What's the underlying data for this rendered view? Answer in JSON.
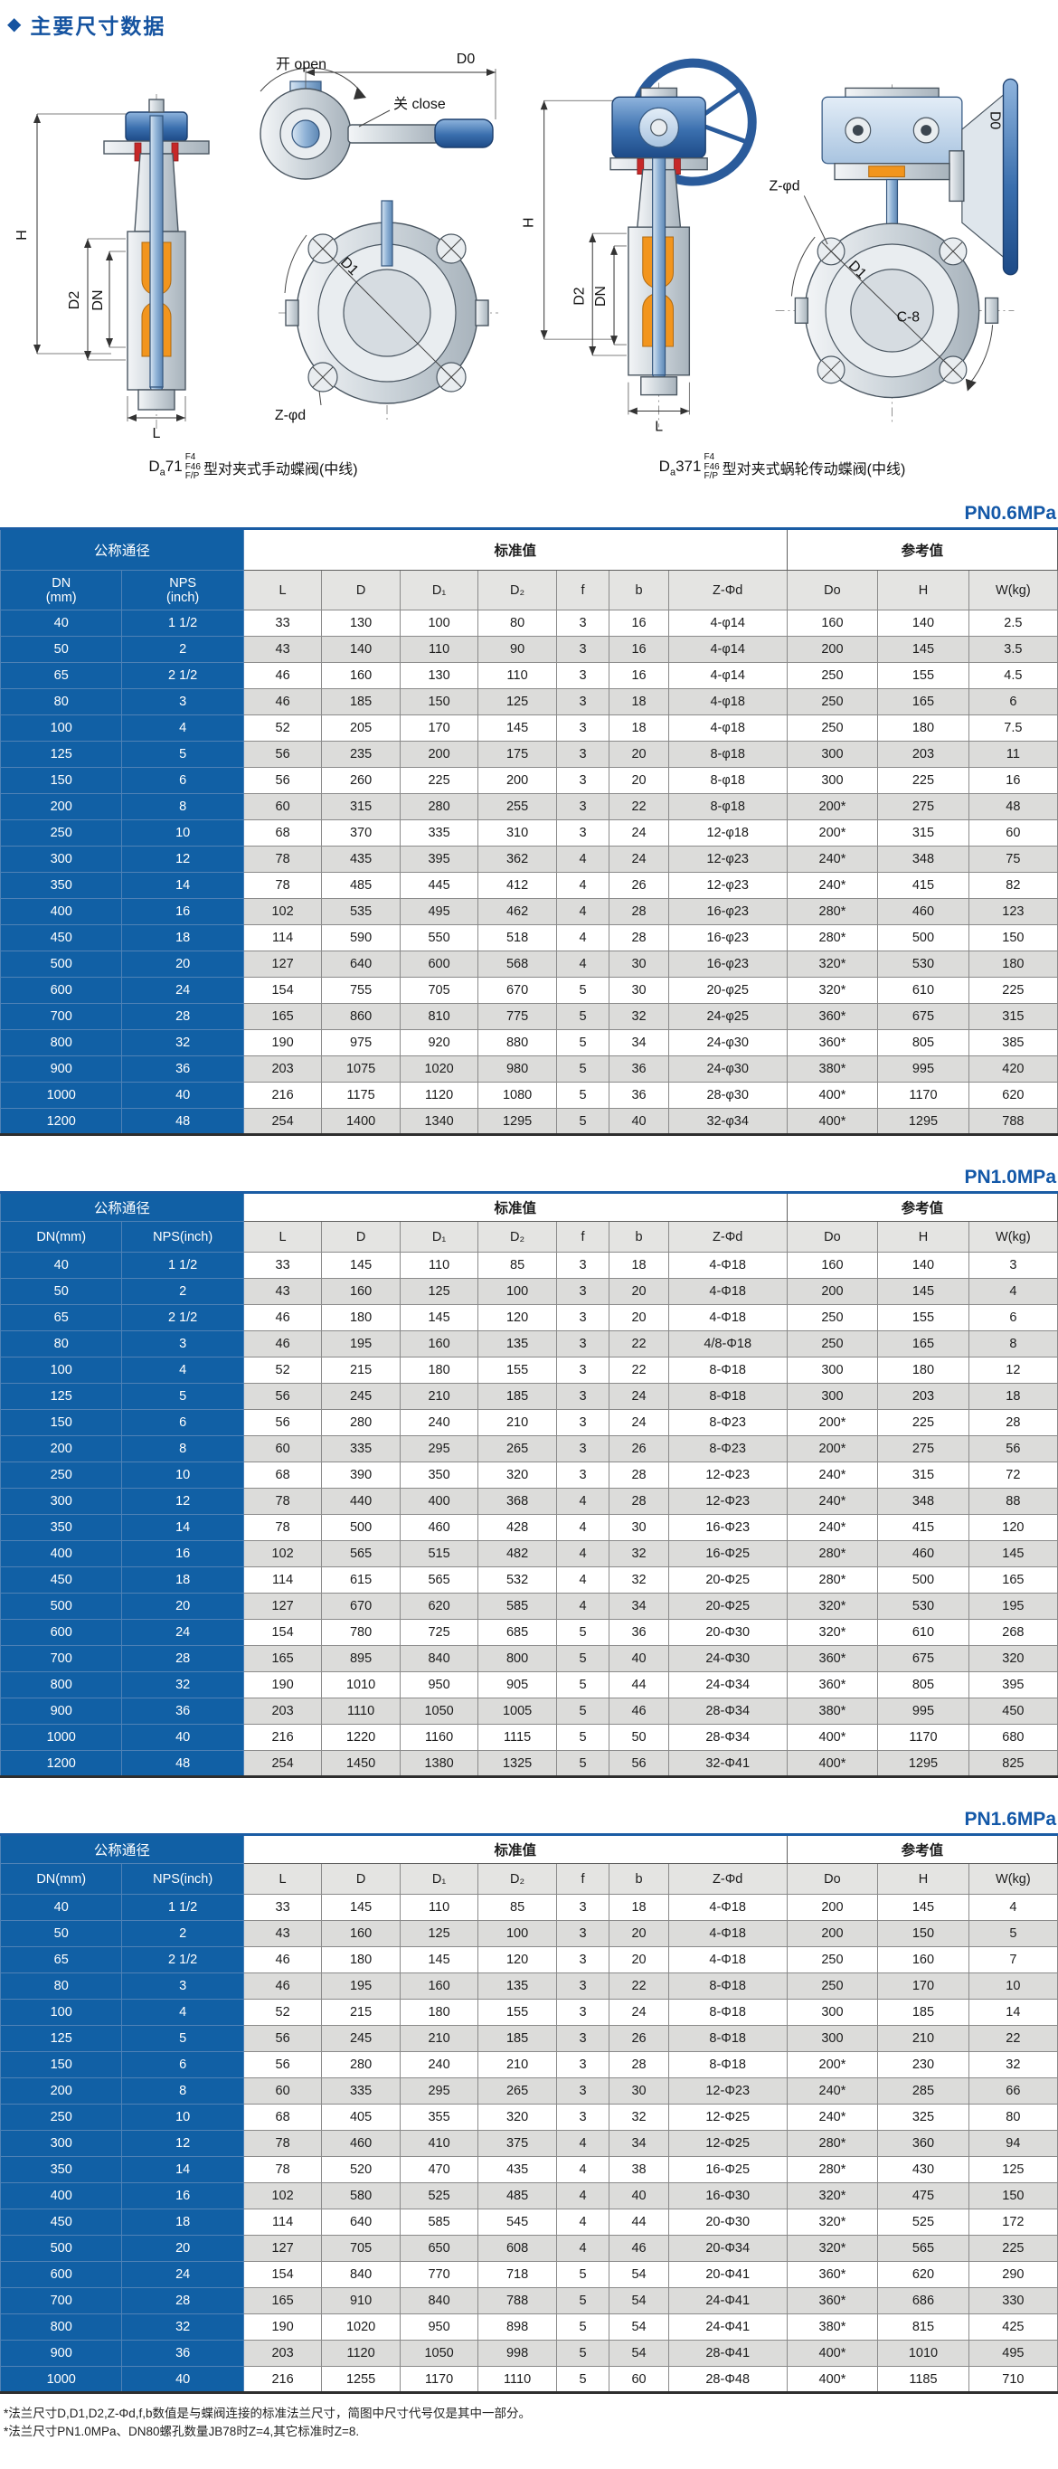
{
  "page": {
    "header": {
      "bullet": "◆",
      "title": "主要尺寸数据"
    },
    "footnotes": [
      "*法兰尺寸D,D1,D2,Z-Φd,f,b数值是与蝶阀连接的标准法兰尺寸，简图中尺寸代号仅是其中一部分。",
      "*法兰尺寸PN1.0MPa、DN80螺孔数量JB78时Z=4,其它标准时Z=8."
    ]
  },
  "drawings": {
    "left": {
      "labels": {
        "open": "开 open",
        "close": "关 close",
        "d0": "D0",
        "h": "H",
        "d2": "D2",
        "dn": "DN",
        "l": "L",
        "zpd": "Z-φd",
        "d1": "D1"
      },
      "caption": {
        "model_prefix": "D",
        "model_sub": "a",
        "model_rest": "71",
        "stack": [
          "F4",
          "F46",
          "F/P"
        ],
        "text": "型对夹式手动蝶阀(中线)"
      }
    },
    "right": {
      "labels": {
        "h": "H",
        "d2": "D2",
        "dn": "DN",
        "l": "L",
        "zpd": "Z-φd",
        "d1": "D1",
        "c8": "C-8",
        "d0": "D0"
      },
      "caption": {
        "model_prefix": "D",
        "model_sub": "a",
        "model_rest": "371",
        "stack": [
          "F4",
          "F46",
          "F/P"
        ],
        "text": "型对夹式蜗轮传动蝶阀(中线)"
      }
    }
  },
  "tables": [
    {
      "title": "PN0.6MPa",
      "groups": [
        {
          "label": "公称通径",
          "span": 2,
          "blue": true
        },
        {
          "label": "标准值",
          "span": 7,
          "blue": false
        },
        {
          "label": "参考值",
          "span": 3,
          "blue": false
        }
      ],
      "columns": [
        "DN\n(mm)",
        "NPS\n(inch)",
        "L",
        "D",
        "D₁",
        "D₂",
        "f",
        "b",
        "Z-Φd",
        "Do",
        "H",
        "W(kg)"
      ],
      "rows": [
        [
          "40",
          "1 1/2",
          "33",
          "130",
          "100",
          "80",
          "3",
          "16",
          "4-φ14",
          "160",
          "140",
          "2.5"
        ],
        [
          "50",
          "2",
          "43",
          "140",
          "110",
          "90",
          "3",
          "16",
          "4-φ14",
          "200",
          "145",
          "3.5"
        ],
        [
          "65",
          "2 1/2",
          "46",
          "160",
          "130",
          "110",
          "3",
          "16",
          "4-φ14",
          "250",
          "155",
          "4.5"
        ],
        [
          "80",
          "3",
          "46",
          "185",
          "150",
          "125",
          "3",
          "18",
          "4-φ18",
          "250",
          "165",
          "6"
        ],
        [
          "100",
          "4",
          "52",
          "205",
          "170",
          "145",
          "3",
          "18",
          "4-φ18",
          "250",
          "180",
          "7.5"
        ],
        [
          "125",
          "5",
          "56",
          "235",
          "200",
          "175",
          "3",
          "20",
          "8-φ18",
          "300",
          "203",
          "11"
        ],
        [
          "150",
          "6",
          "56",
          "260",
          "225",
          "200",
          "3",
          "20",
          "8-φ18",
          "300",
          "225",
          "16"
        ],
        [
          "200",
          "8",
          "60",
          "315",
          "280",
          "255",
          "3",
          "22",
          "8-φ18",
          "200*",
          "275",
          "48"
        ],
        [
          "250",
          "10",
          "68",
          "370",
          "335",
          "310",
          "3",
          "24",
          "12-φ18",
          "200*",
          "315",
          "60"
        ],
        [
          "300",
          "12",
          "78",
          "435",
          "395",
          "362",
          "4",
          "24",
          "12-φ23",
          "240*",
          "348",
          "75"
        ],
        [
          "350",
          "14",
          "78",
          "485",
          "445",
          "412",
          "4",
          "26",
          "12-φ23",
          "240*",
          "415",
          "82"
        ],
        [
          "400",
          "16",
          "102",
          "535",
          "495",
          "462",
          "4",
          "28",
          "16-φ23",
          "280*",
          "460",
          "123"
        ],
        [
          "450",
          "18",
          "114",
          "590",
          "550",
          "518",
          "4",
          "28",
          "16-φ23",
          "280*",
          "500",
          "150"
        ],
        [
          "500",
          "20",
          "127",
          "640",
          "600",
          "568",
          "4",
          "30",
          "16-φ23",
          "320*",
          "530",
          "180"
        ],
        [
          "600",
          "24",
          "154",
          "755",
          "705",
          "670",
          "5",
          "30",
          "20-φ25",
          "320*",
          "610",
          "225"
        ],
        [
          "700",
          "28",
          "165",
          "860",
          "810",
          "775",
          "5",
          "32",
          "24-φ25",
          "360*",
          "675",
          "315"
        ],
        [
          "800",
          "32",
          "190",
          "975",
          "920",
          "880",
          "5",
          "34",
          "24-φ30",
          "360*",
          "805",
          "385"
        ],
        [
          "900",
          "36",
          "203",
          "1075",
          "1020",
          "980",
          "5",
          "36",
          "24-φ30",
          "380*",
          "995",
          "420"
        ],
        [
          "1000",
          "40",
          "216",
          "1175",
          "1120",
          "1080",
          "5",
          "36",
          "28-φ30",
          "400*",
          "1170",
          "620"
        ],
        [
          "1200",
          "48",
          "254",
          "1400",
          "1340",
          "1295",
          "5",
          "40",
          "32-φ34",
          "400*",
          "1295",
          "788"
        ]
      ]
    },
    {
      "title": "PN1.0MPa",
      "groups": [
        {
          "label": "公称通径",
          "span": 2,
          "blue": true
        },
        {
          "label": "标准值",
          "span": 7,
          "blue": false
        },
        {
          "label": "参考值",
          "span": 3,
          "blue": false
        }
      ],
      "columns": [
        "DN(mm)",
        "NPS(inch)",
        "L",
        "D",
        "D₁",
        "D₂",
        "f",
        "b",
        "Z-Φd",
        "Do",
        "H",
        "W(kg)"
      ],
      "rows": [
        [
          "40",
          "1 1/2",
          "33",
          "145",
          "110",
          "85",
          "3",
          "18",
          "4-Φ18",
          "160",
          "140",
          "3"
        ],
        [
          "50",
          "2",
          "43",
          "160",
          "125",
          "100",
          "3",
          "20",
          "4-Φ18",
          "200",
          "145",
          "4"
        ],
        [
          "65",
          "2 1/2",
          "46",
          "180",
          "145",
          "120",
          "3",
          "20",
          "4-Φ18",
          "250",
          "155",
          "6"
        ],
        [
          "80",
          "3",
          "46",
          "195",
          "160",
          "135",
          "3",
          "22",
          "4/8-Φ18",
          "250",
          "165",
          "8"
        ],
        [
          "100",
          "4",
          "52",
          "215",
          "180",
          "155",
          "3",
          "22",
          "8-Φ18",
          "300",
          "180",
          "12"
        ],
        [
          "125",
          "5",
          "56",
          "245",
          "210",
          "185",
          "3",
          "24",
          "8-Φ18",
          "300",
          "203",
          "18"
        ],
        [
          "150",
          "6",
          "56",
          "280",
          "240",
          "210",
          "3",
          "24",
          "8-Φ23",
          "200*",
          "225",
          "28"
        ],
        [
          "200",
          "8",
          "60",
          "335",
          "295",
          "265",
          "3",
          "26",
          "8-Φ23",
          "200*",
          "275",
          "56"
        ],
        [
          "250",
          "10",
          "68",
          "390",
          "350",
          "320",
          "3",
          "28",
          "12-Φ23",
          "240*",
          "315",
          "72"
        ],
        [
          "300",
          "12",
          "78",
          "440",
          "400",
          "368",
          "4",
          "28",
          "12-Φ23",
          "240*",
          "348",
          "88"
        ],
        [
          "350",
          "14",
          "78",
          "500",
          "460",
          "428",
          "4",
          "30",
          "16-Φ23",
          "240*",
          "415",
          "120"
        ],
        [
          "400",
          "16",
          "102",
          "565",
          "515",
          "482",
          "4",
          "32",
          "16-Φ25",
          "280*",
          "460",
          "145"
        ],
        [
          "450",
          "18",
          "114",
          "615",
          "565",
          "532",
          "4",
          "32",
          "20-Φ25",
          "280*",
          "500",
          "165"
        ],
        [
          "500",
          "20",
          "127",
          "670",
          "620",
          "585",
          "4",
          "34",
          "20-Φ25",
          "320*",
          "530",
          "195"
        ],
        [
          "600",
          "24",
          "154",
          "780",
          "725",
          "685",
          "5",
          "36",
          "20-Φ30",
          "320*",
          "610",
          "268"
        ],
        [
          "700",
          "28",
          "165",
          "895",
          "840",
          "800",
          "5",
          "40",
          "24-Φ30",
          "360*",
          "675",
          "320"
        ],
        [
          "800",
          "32",
          "190",
          "1010",
          "950",
          "905",
          "5",
          "44",
          "24-Φ34",
          "360*",
          "805",
          "395"
        ],
        [
          "900",
          "36",
          "203",
          "1110",
          "1050",
          "1005",
          "5",
          "46",
          "28-Φ34",
          "380*",
          "995",
          "450"
        ],
        [
          "1000",
          "40",
          "216",
          "1220",
          "1160",
          "1115",
          "5",
          "50",
          "28-Φ34",
          "400*",
          "1170",
          "680"
        ],
        [
          "1200",
          "48",
          "254",
          "1450",
          "1380",
          "1325",
          "5",
          "56",
          "32-Φ41",
          "400*",
          "1295",
          "825"
        ]
      ]
    },
    {
      "title": "PN1.6MPa",
      "groups": [
        {
          "label": "公称通径",
          "span": 2,
          "blue": true
        },
        {
          "label": "标准值",
          "span": 7,
          "blue": false
        },
        {
          "label": "参考值",
          "span": 3,
          "blue": false
        }
      ],
      "columns": [
        "DN(mm)",
        "NPS(inch)",
        "L",
        "D",
        "D₁",
        "D₂",
        "f",
        "b",
        "Z-Φd",
        "Do",
        "H",
        "W(kg)"
      ],
      "rows": [
        [
          "40",
          "1 1/2",
          "33",
          "145",
          "110",
          "85",
          "3",
          "18",
          "4-Φ18",
          "200",
          "145",
          "4"
        ],
        [
          "50",
          "2",
          "43",
          "160",
          "125",
          "100",
          "3",
          "20",
          "4-Φ18",
          "200",
          "150",
          "5"
        ],
        [
          "65",
          "2 1/2",
          "46",
          "180",
          "145",
          "120",
          "3",
          "20",
          "4-Φ18",
          "250",
          "160",
          "7"
        ],
        [
          "80",
          "3",
          "46",
          "195",
          "160",
          "135",
          "3",
          "22",
          "8-Φ18",
          "250",
          "170",
          "10"
        ],
        [
          "100",
          "4",
          "52",
          "215",
          "180",
          "155",
          "3",
          "24",
          "8-Φ18",
          "300",
          "185",
          "14"
        ],
        [
          "125",
          "5",
          "56",
          "245",
          "210",
          "185",
          "3",
          "26",
          "8-Φ18",
          "300",
          "210",
          "22"
        ],
        [
          "150",
          "6",
          "56",
          "280",
          "240",
          "210",
          "3",
          "28",
          "8-Φ18",
          "200*",
          "230",
          "32"
        ],
        [
          "200",
          "8",
          "60",
          "335",
          "295",
          "265",
          "3",
          "30",
          "12-Φ23",
          "240*",
          "285",
          "66"
        ],
        [
          "250",
          "10",
          "68",
          "405",
          "355",
          "320",
          "3",
          "32",
          "12-Φ25",
          "240*",
          "325",
          "80"
        ],
        [
          "300",
          "12",
          "78",
          "460",
          "410",
          "375",
          "4",
          "34",
          "12-Φ25",
          "280*",
          "360",
          "94"
        ],
        [
          "350",
          "14",
          "78",
          "520",
          "470",
          "435",
          "4",
          "38",
          "16-Φ25",
          "280*",
          "430",
          "125"
        ],
        [
          "400",
          "16",
          "102",
          "580",
          "525",
          "485",
          "4",
          "40",
          "16-Φ30",
          "320*",
          "475",
          "150"
        ],
        [
          "450",
          "18",
          "114",
          "640",
          "585",
          "545",
          "4",
          "44",
          "20-Φ30",
          "320*",
          "525",
          "172"
        ],
        [
          "500",
          "20",
          "127",
          "705",
          "650",
          "608",
          "4",
          "46",
          "20-Φ34",
          "320*",
          "565",
          "225"
        ],
        [
          "600",
          "24",
          "154",
          "840",
          "770",
          "718",
          "5",
          "54",
          "20-Φ41",
          "360*",
          "620",
          "290"
        ],
        [
          "700",
          "28",
          "165",
          "910",
          "840",
          "788",
          "5",
          "54",
          "24-Φ41",
          "360*",
          "686",
          "330"
        ],
        [
          "800",
          "32",
          "190",
          "1020",
          "950",
          "898",
          "5",
          "54",
          "24-Φ41",
          "380*",
          "815",
          "425"
        ],
        [
          "900",
          "36",
          "203",
          "1120",
          "1050",
          "998",
          "5",
          "54",
          "28-Φ41",
          "400*",
          "1010",
          "495"
        ],
        [
          "1000",
          "40",
          "216",
          "1255",
          "1170",
          "1110",
          "5",
          "60",
          "28-Φ48",
          "400*",
          "1185",
          "710"
        ]
      ]
    }
  ]
}
